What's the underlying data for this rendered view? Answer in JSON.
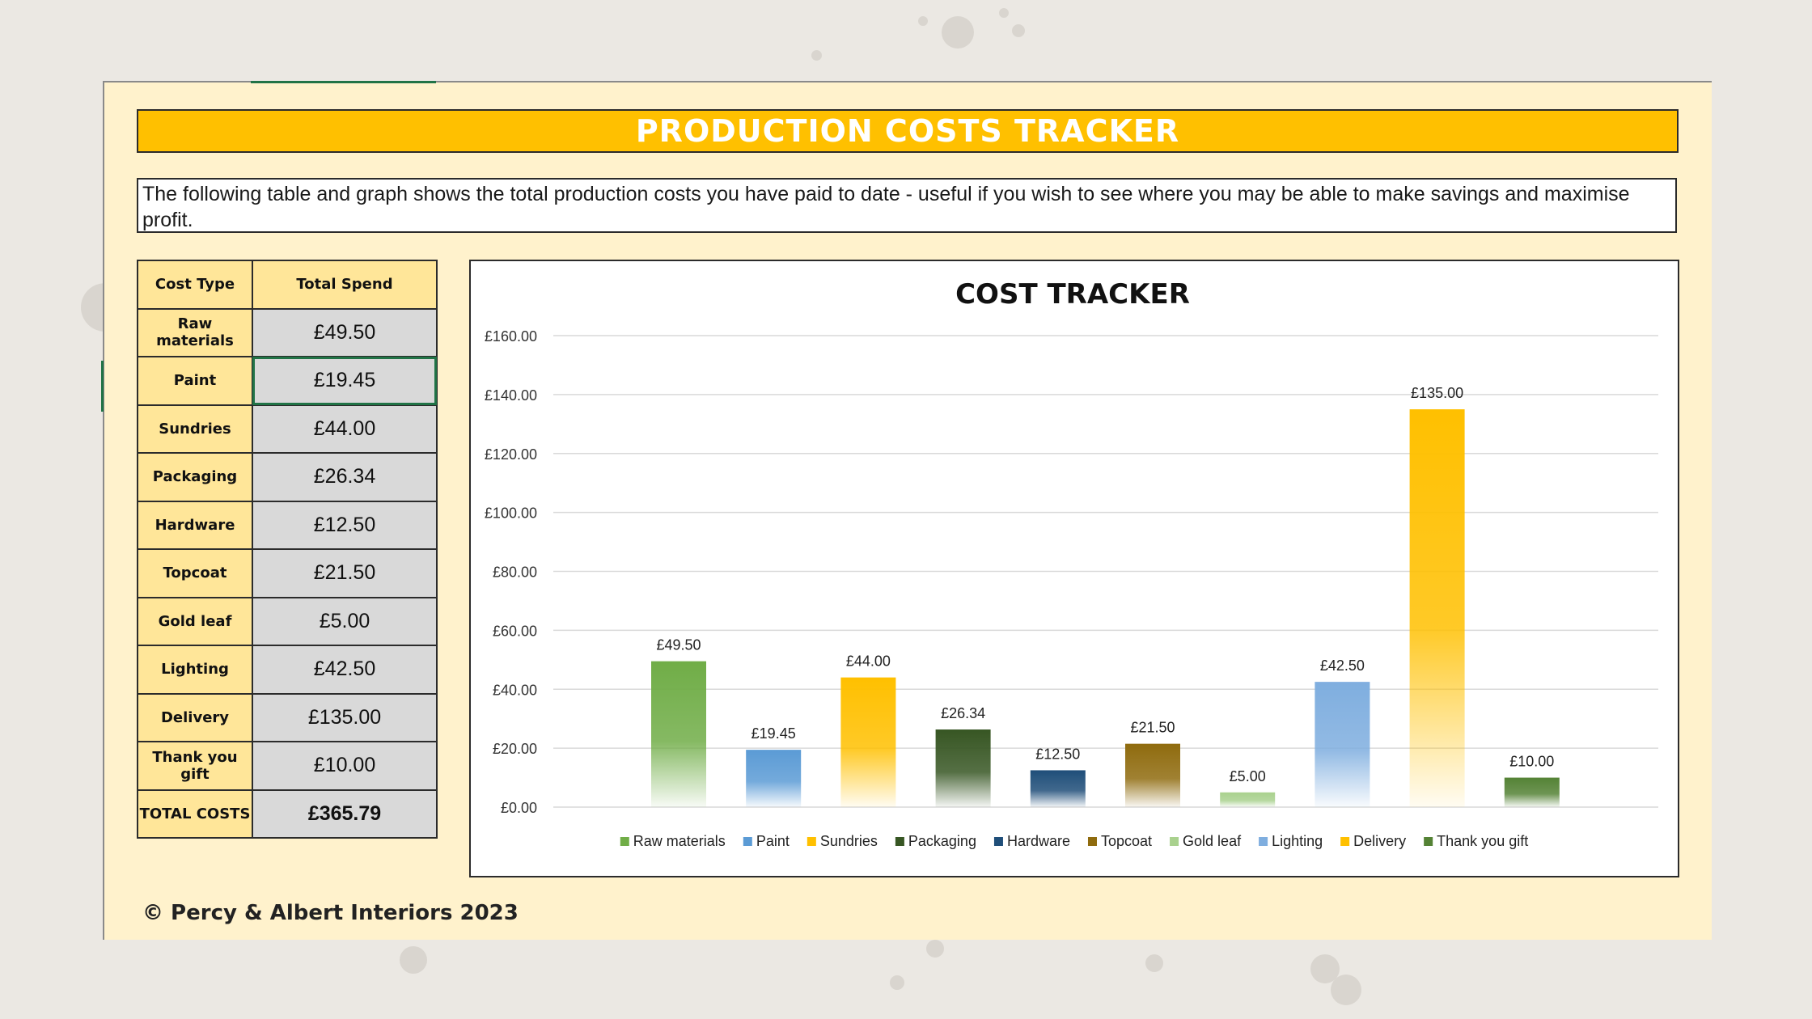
{
  "banner": {
    "title": "PRODUCTION COSTS TRACKER"
  },
  "description": "The following table and graph shows the total production costs you have paid to date - useful if you wish to see where you may be able to make savings and maximise profit.",
  "table": {
    "headers": [
      "Cost Type",
      "Total Spend"
    ],
    "rows": [
      {
        "label": "Raw materials",
        "value": "£49.50"
      },
      {
        "label": "Paint",
        "value": "£19.45"
      },
      {
        "label": "Sundries",
        "value": "£44.00"
      },
      {
        "label": "Packaging",
        "value": "£26.34"
      },
      {
        "label": "Hardware",
        "value": "£12.50"
      },
      {
        "label": "Topcoat",
        "value": "£21.50"
      },
      {
        "label": "Gold leaf",
        "value": "£5.00"
      },
      {
        "label": "Lighting",
        "value": "£42.50"
      },
      {
        "label": "Delivery",
        "value": "£135.00"
      },
      {
        "label": "Thank you gift",
        "value": "£10.00"
      }
    ],
    "total": {
      "label": "TOTAL COSTS",
      "value": "£365.79"
    }
  },
  "footer": "© Percy & Albert Interiors 2023",
  "chart_data": {
    "type": "bar",
    "title": "COST TRACKER",
    "categories": [
      "Raw materials",
      "Paint",
      "Sundries",
      "Packaging",
      "Hardware",
      "Topcoat",
      "Gold leaf",
      "Lighting",
      "Delivery",
      "Thank you gift"
    ],
    "values": [
      49.5,
      19.45,
      44.0,
      26.34,
      12.5,
      21.5,
      5.0,
      42.5,
      135.0,
      10.0
    ],
    "data_labels": [
      "£49.50",
      "£19.45",
      "£44.00",
      "£26.34",
      "£12.50",
      "£21.50",
      "£5.00",
      "£42.50",
      "£135.00",
      "£10.00"
    ],
    "colors": [
      "#70ad47",
      "#5b9bd5",
      "#ffc000",
      "#375623",
      "#1f4e79",
      "#8f6b0e",
      "#a9d18e",
      "#7faedf",
      "#ffc000",
      "#548235"
    ],
    "y_ticks": [
      "£0.00",
      "£20.00",
      "£40.00",
      "£60.00",
      "£80.00",
      "£100.00",
      "£120.00",
      "£140.00",
      "£160.00"
    ],
    "ylim": [
      0,
      160
    ],
    "xlabel": "",
    "ylabel": "",
    "grid": true,
    "legend": "bottom"
  }
}
